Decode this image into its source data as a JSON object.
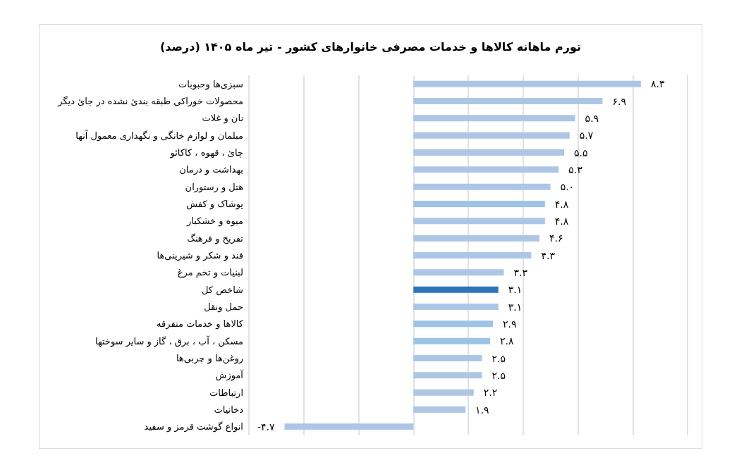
{
  "chart_data": {
    "type": "bar",
    "orientation": "horizontal",
    "title": "تورم ماهانه کالاها و خدمات مصرفی خانوارهای کشور - تیر ماه ۱۴۰۵ (درصد)",
    "categories": [
      "سبزی‌ها وحبوبات",
      "محصولات خوراکی طبقه بندئ نشده در جائ دیگر",
      "نان و غلات",
      "مبلمان و لوازم خانگی و نگهداری معمول آنها",
      "چائ ، قهوه ، کاکائو",
      "بهداشت و درمان",
      "هتل و رستوران",
      "پوشاک و کفش",
      "میوه و خشکبار",
      "تفریح و فرهنگ",
      "قند و شکر و شیرینی‌ها",
      "لبنیات و تخم مرغ",
      "شاخص کل",
      "حمل ونقل",
      "کالاها و خدمات متفرقه",
      "مسکن ، آب ، برق ، گاز و سایر سوختها",
      "روغن‌ها و چربی‌ها",
      "آموزش",
      "ارتباطات",
      "دخانیات",
      "انواع گوشت قرمز و سفید"
    ],
    "values": [
      8.3,
      6.9,
      5.9,
      5.7,
      5.5,
      5.3,
      5.0,
      4.8,
      4.8,
      4.6,
      4.3,
      3.3,
      3.1,
      3.1,
      2.9,
      2.8,
      2.5,
      2.5,
      2.2,
      1.9,
      -4.7
    ],
    "value_labels": [
      "۸.۳",
      "۶.۹",
      "۵.۹",
      "۵.۷",
      "۵.۵",
      "۵.۳",
      "۵.۰",
      "۴.۸",
      "۴.۸",
      "۴.۶",
      "۴.۳",
      "۳.۳",
      "۳.۱",
      "۳.۱",
      "۲.۹",
      "۲.۸",
      "۲.۵",
      "۲.۵",
      "۲.۲",
      "۱.۹",
      "-۴.۷"
    ],
    "colors": [
      "#adc6e6",
      "#adc6e6",
      "#adc6e6",
      "#adc6e6",
      "#adc6e6",
      "#adc6e6",
      "#adc6e6",
      "#9dc3e6",
      "#adc6e6",
      "#adc6e6",
      "#adc6e6",
      "#adc6e6",
      "#2e75b6",
      "#adc6e6",
      "#9dc3e6",
      "#9dc3e6",
      "#adc6e6",
      "#adc6e6",
      "#adc6e6",
      "#adc6e6",
      "#adc6e6"
    ],
    "xlim": [
      -6,
      10
    ],
    "xticks": [
      {
        "value": -6,
        "label": null
      },
      {
        "value": -4,
        "label": null
      },
      {
        "value": -2,
        "label": null
      },
      {
        "value": 0,
        "label": null
      },
      {
        "value": 2,
        "label": null
      },
      {
        "value": 4,
        "label": null
      },
      {
        "value": 6,
        "label": null
      },
      {
        "value": 8,
        "label": null
      },
      {
        "value": 10,
        "label": null
      }
    ],
    "grid": "x",
    "tick_labels": "y"
  }
}
